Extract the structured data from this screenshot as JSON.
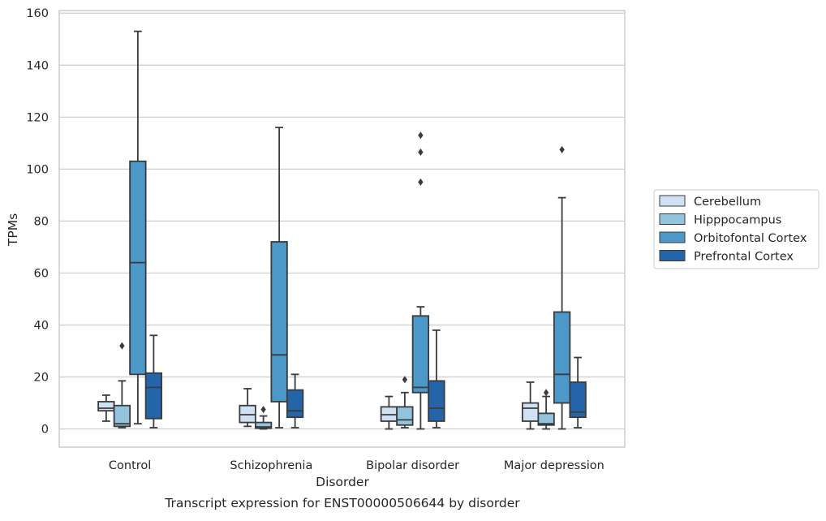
{
  "chart_data": {
    "type": "boxplot",
    "title": "",
    "caption": "Transcript expression for ENST00000506644 by disorder",
    "xlabel": "Disorder",
    "ylabel": "TPMs",
    "ylim": [
      -7,
      161
    ],
    "yticks": [
      0,
      20,
      40,
      60,
      80,
      100,
      120,
      140,
      160
    ],
    "grid": "horizontal",
    "legend_placement": "center-right outside",
    "categories": [
      "Control",
      "Schizophrenia",
      "Bipolar disorder",
      "Major depression"
    ],
    "series": [
      {
        "name": "Cerebellum",
        "color": "#cfe1f2",
        "boxes": [
          {
            "whislo": 3,
            "q1": 7,
            "med": 8,
            "q3": 10.5,
            "whishi": 13,
            "fliers": []
          },
          {
            "whislo": 1,
            "q1": 2.5,
            "med": 5.5,
            "q3": 9,
            "whishi": 15.5,
            "fliers": []
          },
          {
            "whislo": 0,
            "q1": 3,
            "med": 5.5,
            "q3": 8.5,
            "whishi": 12.5,
            "fliers": []
          },
          {
            "whislo": 0,
            "q1": 3,
            "med": 8,
            "q3": 10,
            "whishi": 18,
            "fliers": []
          }
        ]
      },
      {
        "name": "Hipppocampus",
        "color": "#93c4de",
        "boxes": [
          {
            "whislo": 0.5,
            "q1": 1,
            "med": 2,
            "q3": 9,
            "whishi": 18.5,
            "fliers": [
              32
            ]
          },
          {
            "whislo": 0,
            "q1": 0.3,
            "med": 0.8,
            "q3": 2.5,
            "whishi": 5,
            "fliers": [
              7.5
            ]
          },
          {
            "whislo": 0.5,
            "q1": 1.5,
            "med": 3.5,
            "q3": 8.5,
            "whishi": 14,
            "fliers": [
              19
            ]
          },
          {
            "whislo": 0,
            "q1": 1.5,
            "med": 2,
            "q3": 6,
            "whishi": 12.5,
            "fliers": [
              14
            ]
          }
        ]
      },
      {
        "name": "Orbitofontal Cortex",
        "color": "#4b98c9",
        "boxes": [
          {
            "whislo": 2,
            "q1": 21,
            "med": 64,
            "q3": 103,
            "whishi": 153,
            "fliers": []
          },
          {
            "whislo": 0.5,
            "q1": 10.5,
            "med": 28.5,
            "q3": 72,
            "whishi": 116,
            "fliers": []
          },
          {
            "whislo": 0,
            "q1": 14,
            "med": 16,
            "q3": 43.5,
            "whishi": 47,
            "fliers": [
              95,
              106.5,
              113
            ]
          },
          {
            "whislo": 0,
            "q1": 10,
            "med": 21,
            "q3": 45,
            "whishi": 89,
            "fliers": [
              107.5
            ]
          }
        ]
      },
      {
        "name": "Prefrontal Cortex",
        "color": "#2464a8",
        "boxes": [
          {
            "whislo": 0.5,
            "q1": 4,
            "med": 16,
            "q3": 21.5,
            "whishi": 36,
            "fliers": []
          },
          {
            "whislo": 0.5,
            "q1": 4.5,
            "med": 7,
            "q3": 15,
            "whishi": 21,
            "fliers": []
          },
          {
            "whislo": 0.5,
            "q1": 3,
            "med": 8,
            "q3": 18.5,
            "whishi": 38,
            "fliers": []
          },
          {
            "whislo": 0.5,
            "q1": 4.5,
            "med": 6.5,
            "q3": 18,
            "whishi": 27.5,
            "fliers": []
          }
        ]
      }
    ]
  }
}
